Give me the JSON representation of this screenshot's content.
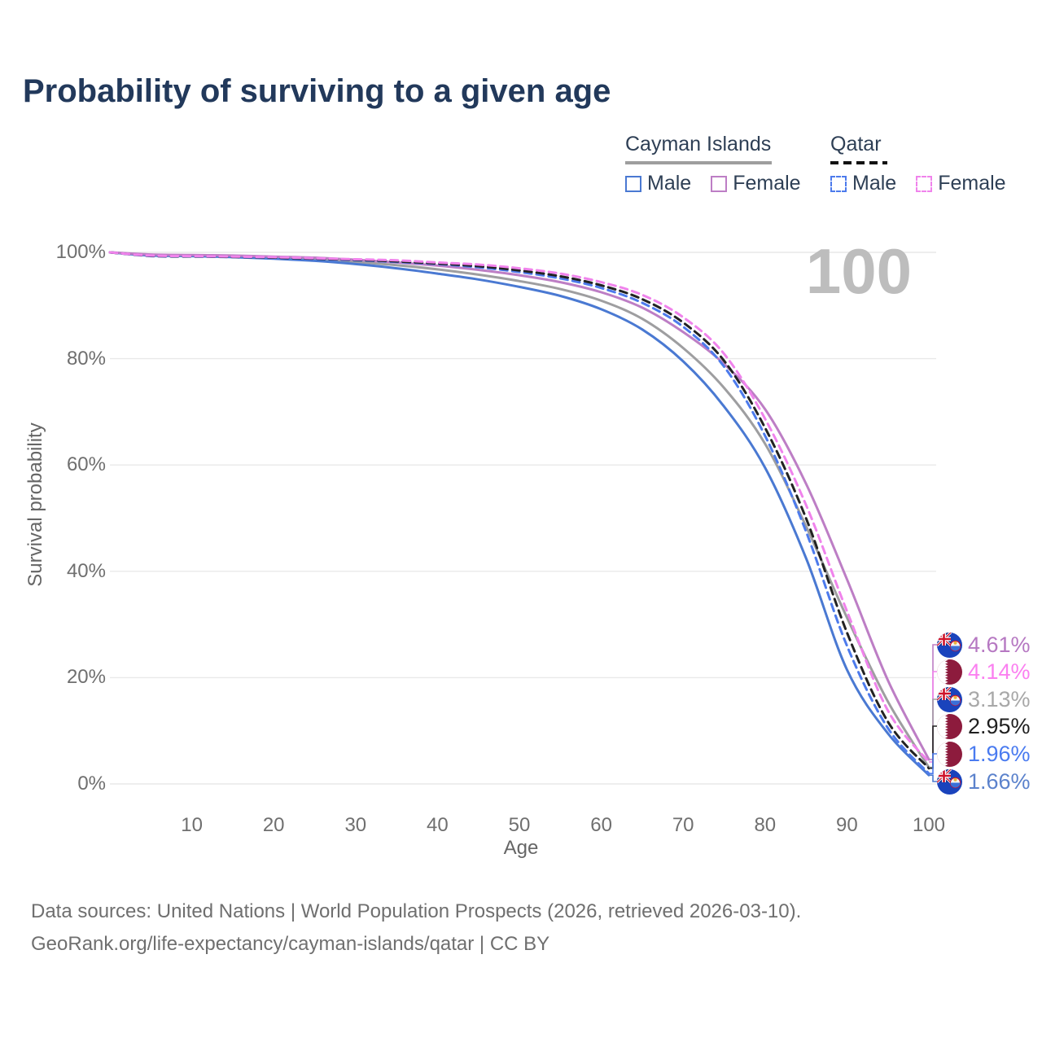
{
  "title": "Probability of surviving to a given age",
  "age_watermark": "100",
  "legend": {
    "groups": [
      {
        "label": "Cayman Islands",
        "underline_style": "solid",
        "underline_color": "#9e9e9e",
        "items": [
          {
            "label": "Male",
            "color": "#4a79d2",
            "line": "solid"
          },
          {
            "label": "Female",
            "color": "#bd7ec5",
            "line": "solid"
          }
        ]
      },
      {
        "label": "Qatar",
        "underline_style": "dashed",
        "underline_color": "#111111",
        "items": [
          {
            "label": "Male",
            "color": "#4d7bec",
            "line": "dashed"
          },
          {
            "label": "Female",
            "color": "#f083ec",
            "line": "dashed"
          }
        ]
      }
    ]
  },
  "chart_data": {
    "type": "line",
    "title": "Probability of surviving to a given age",
    "xlabel": "Age",
    "ylabel": "Survival probability",
    "xlim": [
      0,
      100
    ],
    "ylim": [
      0,
      100
    ],
    "grid": "horizontal",
    "legend_position": "top-right",
    "x_ticks": [
      10,
      20,
      30,
      40,
      50,
      60,
      70,
      80,
      90,
      100
    ],
    "y_ticks": [
      {
        "pct": 0,
        "label": "0%"
      },
      {
        "pct": 20,
        "label": "20%"
      },
      {
        "pct": 40,
        "label": "40%"
      },
      {
        "pct": 60,
        "label": "60%"
      },
      {
        "pct": 80,
        "label": "80%"
      },
      {
        "pct": 100,
        "label": "100%"
      }
    ],
    "ages": [
      0,
      5,
      10,
      15,
      20,
      25,
      30,
      35,
      40,
      45,
      50,
      55,
      60,
      65,
      70,
      75,
      80,
      85,
      90,
      95,
      100
    ],
    "series": [
      {
        "key": "cayman-total",
        "name": "Cayman Islands",
        "color": "#9e9ea0",
        "line": "solid",
        "values": [
          100,
          99.5,
          99.4,
          99.2,
          99.0,
          98.7,
          98.2,
          97.6,
          96.8,
          95.8,
          94.6,
          93.1,
          90.9,
          87.5,
          82.0,
          74.5,
          64.0,
          48.5,
          31.3,
          15.5,
          3.13
        ],
        "end_label": "3.13%"
      },
      {
        "key": "cayman-male",
        "name": "Cayman Islands Male",
        "color": "#4a79d2",
        "line": "solid",
        "values": [
          100,
          99.4,
          99.3,
          99.1,
          98.8,
          98.4,
          97.8,
          97.0,
          96.0,
          94.9,
          93.5,
          91.8,
          89.3,
          85.5,
          79.5,
          71.0,
          59.5,
          42.5,
          21.5,
          9.5,
          1.66
        ],
        "end_label": "1.66%"
      },
      {
        "key": "cayman-female",
        "name": "Cayman Islands Female",
        "color": "#bd7ec5",
        "line": "solid",
        "values": [
          100,
          99.6,
          99.5,
          99.4,
          99.2,
          99.0,
          98.6,
          98.1,
          97.5,
          96.7,
          95.7,
          94.4,
          92.5,
          89.6,
          85.0,
          79.0,
          70.5,
          56.5,
          38.5,
          19.5,
          4.61
        ],
        "end_label": "4.61%"
      },
      {
        "key": "qatar-male",
        "name": "Qatar Male",
        "color": "#4d7bec",
        "line": "dashed",
        "values": [
          100,
          99.3,
          99.2,
          99.1,
          98.9,
          98.7,
          98.5,
          98.2,
          97.8,
          97.2,
          96.3,
          95.1,
          93.3,
          90.5,
          86.0,
          78.5,
          65.5,
          47.5,
          26.0,
          10.5,
          1.96
        ],
        "end_label": "1.96%"
      },
      {
        "key": "qatar-total",
        "name": "Qatar",
        "color": "#222222",
        "line": "dashed",
        "values": [
          100,
          99.35,
          99.25,
          99.15,
          99.0,
          98.8,
          98.6,
          98.3,
          97.9,
          97.4,
          96.6,
          95.5,
          93.8,
          91.2,
          86.8,
          79.6,
          67.0,
          50.0,
          28.5,
          11.7,
          2.95
        ],
        "end_label": "2.95%"
      },
      {
        "key": "qatar-female",
        "name": "Qatar Female",
        "color": "#f083ec",
        "line": "dashed",
        "values": [
          100,
          99.4,
          99.3,
          99.2,
          99.1,
          98.9,
          98.7,
          98.5,
          98.1,
          97.7,
          97.0,
          96.0,
          94.4,
          92.0,
          87.8,
          80.9,
          68.7,
          52.5,
          32.5,
          13.8,
          4.14
        ],
        "end_label": "4.14%"
      }
    ],
    "end_labels": [
      {
        "series": "cayman-female",
        "value": "4.61%",
        "flag": "cayman",
        "text_color": "#b678c2"
      },
      {
        "series": "qatar-female",
        "value": "4.14%",
        "flag": "qatar",
        "text_color": "#fb80f0"
      },
      {
        "series": "cayman-total",
        "value": "3.13%",
        "flag": "cayman",
        "text_color": "#a8a8a8"
      },
      {
        "series": "qatar-total",
        "value": "2.95%",
        "flag": "qatar",
        "text_color": "#1f1f1f"
      },
      {
        "series": "qatar-male",
        "value": "1.96%",
        "flag": "qatar",
        "text_color": "#4a7bf0"
      },
      {
        "series": "cayman-male",
        "value": "1.66%",
        "flag": "cayman",
        "text_color": "#5b82cc"
      }
    ]
  },
  "footer": {
    "line1": "Data sources: United Nations | World Population Prospects (2026, retrieved 2026-03-10).",
    "line2": "GeoRank.org/life-expectancy/cayman-islands/qatar | CC BY"
  }
}
